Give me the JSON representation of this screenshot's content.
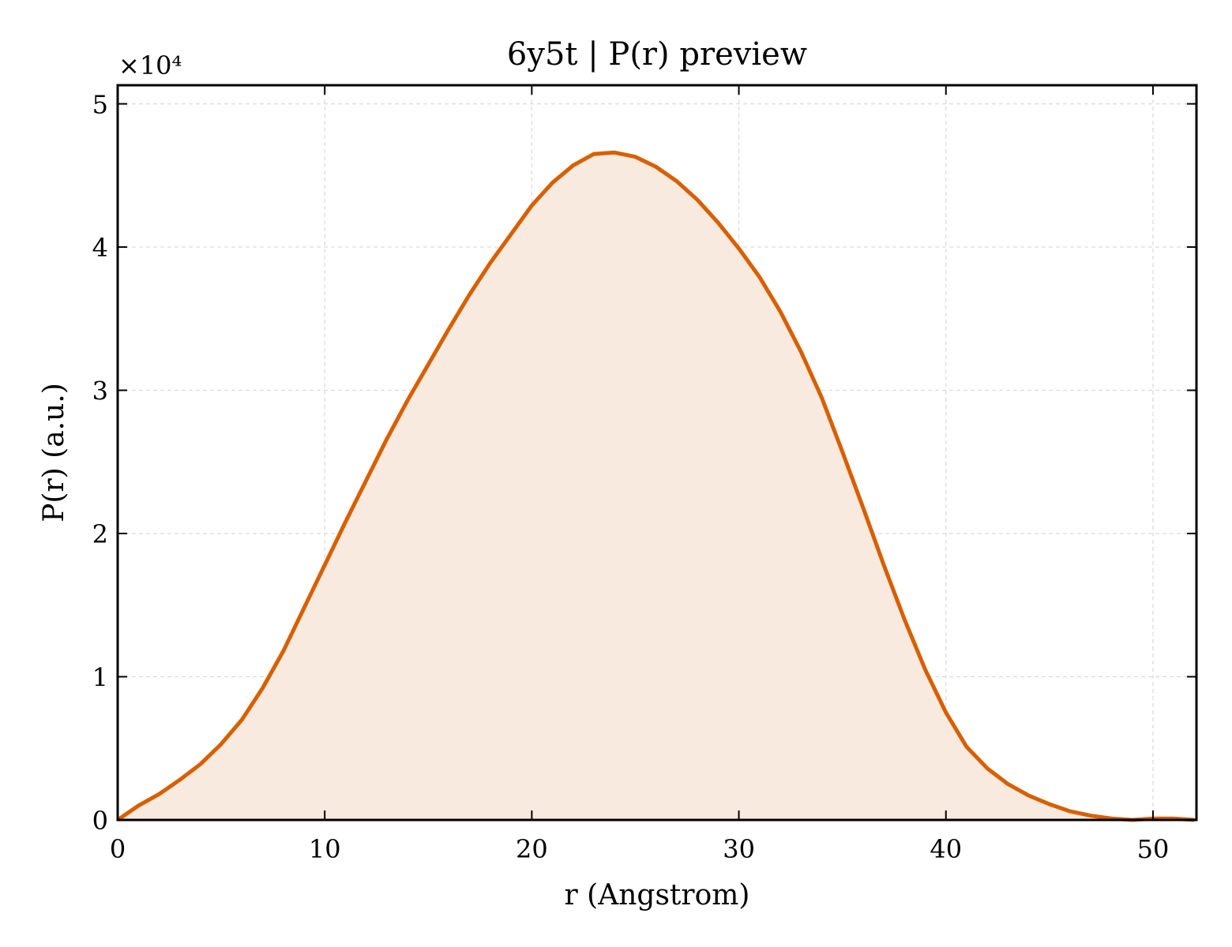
{
  "chart_data": {
    "type": "area",
    "title": "6y5t | P(r) preview",
    "xlabel": "r (Angstrom)",
    "ylabel": "P(r) (a.u.)",
    "y_offset_text": "×10⁴",
    "xlim": [
      0,
      52.1
    ],
    "ylim": [
      0,
      51300
    ],
    "x_ticks": [
      0,
      10,
      20,
      30,
      40,
      50
    ],
    "y_ticks": [
      0,
      10000,
      20000,
      30000,
      40000,
      50000
    ],
    "x_tick_labels": [
      "0",
      "10",
      "20",
      "30",
      "40",
      "50"
    ],
    "y_tick_labels": [
      "0",
      "1",
      "2",
      "3",
      "4",
      "5"
    ],
    "grid": true,
    "colors": {
      "line": "#d95f02",
      "fill": "#f9eadf",
      "grid": "#d9d9d9"
    },
    "series": [
      {
        "x": [
          0,
          0.5,
          1,
          2,
          3,
          4,
          5,
          6,
          7,
          8,
          9,
          10,
          11,
          12,
          13,
          14,
          15,
          16,
          17,
          18,
          19,
          20,
          21,
          22,
          23,
          24,
          25,
          26,
          27,
          28,
          29,
          30,
          31,
          32,
          33,
          34,
          35,
          36,
          37,
          38,
          39,
          40,
          41,
          42,
          43,
          44,
          45,
          46,
          47,
          48,
          49,
          50,
          51,
          52
        ],
        "y": [
          0,
          500,
          1000,
          1800,
          2800,
          3900,
          5300,
          7000,
          9200,
          11800,
          14800,
          17800,
          20800,
          23700,
          26600,
          29300,
          31800,
          34300,
          36700,
          38900,
          40900,
          42900,
          44500,
          45700,
          46500,
          46600,
          46300,
          45600,
          44600,
          43300,
          41700,
          39900,
          37900,
          35500,
          32700,
          29500,
          25700,
          21800,
          17800,
          14000,
          10500,
          7500,
          5100,
          3600,
          2500,
          1700,
          1100,
          600,
          300,
          100,
          0,
          100,
          100,
          0
        ]
      }
    ]
  }
}
